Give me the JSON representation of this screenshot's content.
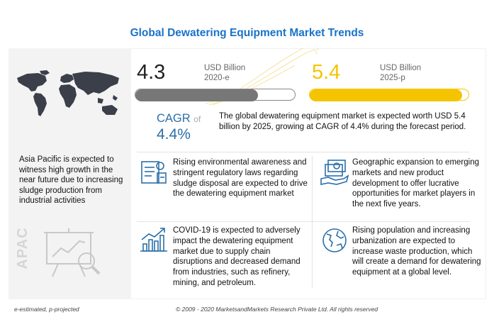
{
  "title": "Global Dewatering Equipment Market Trends",
  "left_panel": {
    "text": "Asia Pacific is expected to witness high growth in the near future due to increasing sludge production from industrial activities",
    "region": "APAC"
  },
  "value_2020": {
    "value": "4.3",
    "unit": "USD Billion",
    "year": "2020-e",
    "bar_fill_fraction": 0.77
  },
  "value_2025": {
    "value": "5.4",
    "unit": "USD Billion",
    "year": "2025-p",
    "bar_fill_fraction": 0.96
  },
  "cagr": {
    "label": "CAGR",
    "of": "of",
    "value": "4.4%"
  },
  "summary": "The global dewatering equipment market is expected worth USD 5.4 billion by 2025, growing at CAGR of 4.4% during the forecast period.",
  "points": [
    {
      "text": "Rising environmental awareness and stringent regulatory laws regarding sludge disposal are expected to drive the dewatering equipment market",
      "icon": "regulation-icon"
    },
    {
      "text": "Geographic expansion to emerging markets and new product development to offer lucrative opportunities for market players in the next five years.",
      "icon": "money-hand-icon"
    },
    {
      "text": "COVID-19 is expected to adversely impact the dewatering equipment market due to supply chain disruptions and decreased demand from industries, such as refinery, mining, and petroleum.",
      "icon": "growth-chart-icon"
    },
    {
      "text": "Rising population and increasing urbanization are expected to increase waste production, which will create a demand for dewatering equipment at a global level.",
      "icon": "globe-icon"
    }
  ],
  "colors": {
    "title": "#1a73c8",
    "bar_2020": "#777777",
    "bar_2025": "#f5c400",
    "cagr": "#2b6fa8"
  },
  "footer": {
    "note": "e-estimated, p-projected",
    "copyright": "© 2009 - 2020 MarketsandMarkets Research Private Ltd. All rights reserved"
  }
}
